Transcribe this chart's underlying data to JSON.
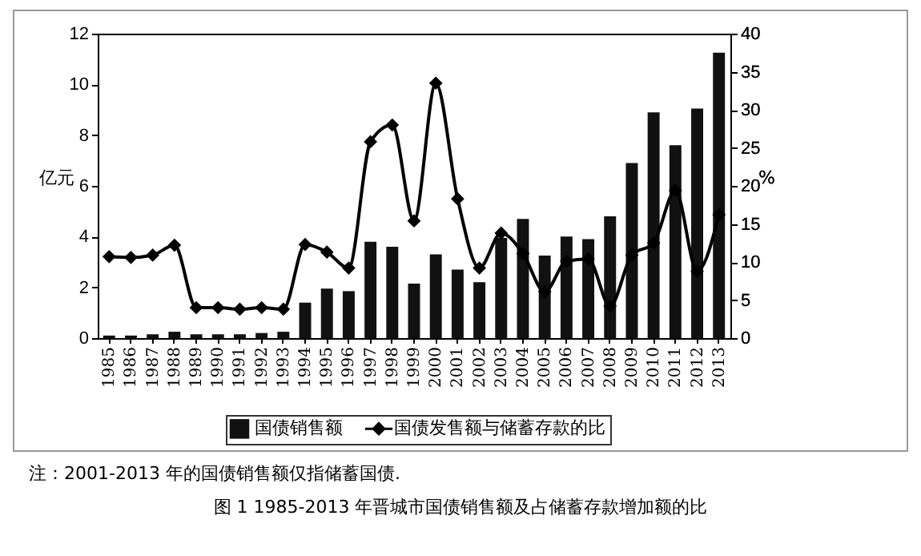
{
  "chart_data": {
    "type": "bar",
    "title": "图 1 1985-2013 年晋城市国债销售额及占储蓄存款增加额的比",
    "annotations": [
      "注：2001-2013 年的国债销售额仅指储蓄国债."
    ],
    "ylabel": "亿元",
    "y2label": "%",
    "categories": [
      "1985",
      "1986",
      "1987",
      "1988",
      "1989",
      "1990",
      "1991",
      "1992",
      "1993",
      "1994",
      "1995",
      "1996",
      "1997",
      "1998",
      "1999",
      "2000",
      "2001",
      "2002",
      "2003",
      "2004",
      "2005",
      "2006",
      "2007",
      "2008",
      "2009",
      "2010",
      "2011",
      "2012",
      "2013"
    ],
    "series": [
      {
        "name": "国债销售额",
        "color": "#111111",
        "values": [
          0.1,
          0.1,
          0.15,
          0.25,
          0.15,
          0.15,
          0.15,
          0.2,
          0.25,
          1.4,
          1.95,
          1.85,
          3.8,
          3.6,
          2.15,
          3.3,
          2.7,
          2.2,
          3.95,
          4.7,
          3.25,
          4.0,
          3.9,
          4.8,
          6.9,
          8.9,
          7.6,
          9.05,
          11.25
        ]
      },
      {
        "name": "国债发售额与储蓄存款的比",
        "type": "line",
        "axis": "y2",
        "color": "#000000",
        "marker": "diamond",
        "values": [
          10.7,
          10.6,
          10.9,
          12.2,
          4.0,
          4.0,
          3.8,
          4.0,
          3.8,
          12.3,
          11.3,
          9.2,
          25.8,
          28.0,
          15.4,
          33.5,
          18.3,
          9.2,
          13.8,
          11.1,
          6.1,
          10.1,
          10.4,
          4.2,
          10.9,
          12.5,
          19.4,
          8.8,
          16.2
        ]
      }
    ],
    "ylim": [
      0,
      12
    ],
    "yticks": [
      0,
      2,
      4,
      6,
      8,
      10,
      12
    ],
    "y2lim": [
      0,
      40
    ],
    "y2ticks": [
      0,
      5,
      10,
      15,
      20,
      25,
      30,
      35,
      40
    ],
    "legend": "bottom",
    "grid": false
  }
}
